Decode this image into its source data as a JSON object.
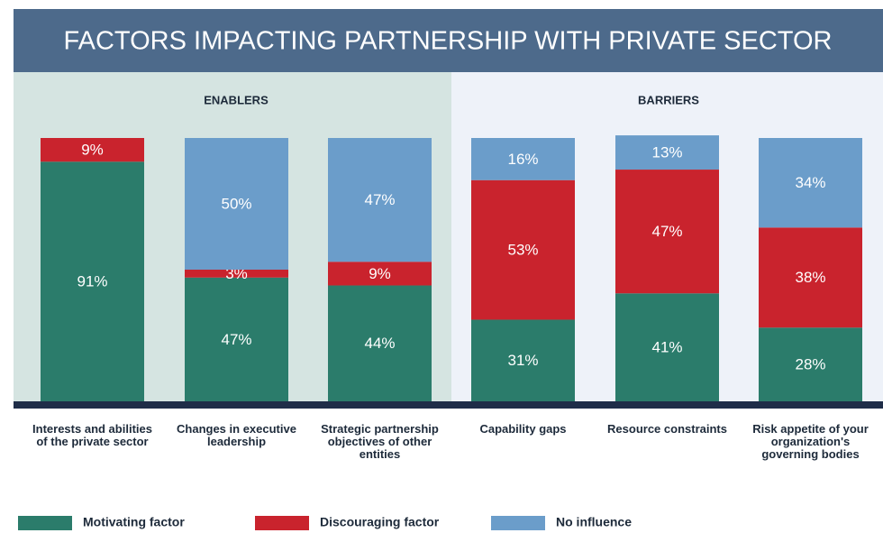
{
  "chart_data": {
    "type": "stacked_bar",
    "title": "FACTORS IMPACTING PARTNERSHIP WITH PRIVATE SECTOR",
    "annotations": [
      "ENABLERS",
      "BARRIERS"
    ],
    "categories": [
      "Interests and abilities of the private sector",
      "Changes in executive leadership",
      "Strategic partnership objectives of other entities",
      "Capability gaps",
      "Resource constraints",
      "Risk appetite of your organization's governing bodies"
    ],
    "ylim": [
      0,
      100
    ],
    "series": [
      {
        "name": "Motivating factor",
        "color": "#2b7c6b",
        "values": [
          91,
          47,
          44,
          31,
          41,
          28
        ],
        "value_labels": [
          "91%",
          "47%",
          "44%",
          "31%",
          "41%",
          "28%"
        ]
      },
      {
        "name": "Discouraging factor",
        "color": "#c9232d",
        "values": [
          9,
          3,
          9,
          53,
          47,
          38
        ],
        "value_labels": [
          "9%",
          "3%",
          "9%",
          "53%",
          "47%",
          "38%"
        ]
      },
      {
        "name": "No influence",
        "color": "#6b9dca",
        "values": [
          null,
          50,
          47,
          16,
          13,
          34
        ],
        "value_labels": [
          null,
          "50%",
          "47%",
          "16%",
          "13%",
          "34%"
        ]
      }
    ]
  }
}
